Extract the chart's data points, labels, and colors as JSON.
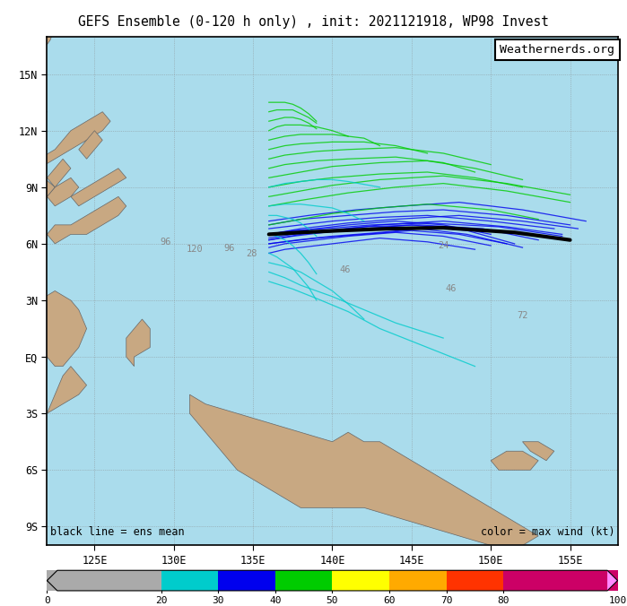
{
  "title": "GEFS Ensemble (0-120 h only) , init: 2021121918, WP98 Invest",
  "watermark": "Weathernerds.org",
  "legend_left": "black line = ens mean",
  "legend_right": "color = max wind (kt)",
  "map_extent": [
    122,
    158,
    -10,
    17
  ],
  "colorbar_ticks": [
    0,
    20,
    30,
    40,
    50,
    60,
    70,
    80,
    100
  ],
  "colorbar_colors": [
    "#aaaaaa",
    "#00cccc",
    "#0000ee",
    "#00cc00",
    "#ffff00",
    "#ffaa00",
    "#ff3300",
    "#cc0066",
    "#ff88ff"
  ],
  "background_color": "#aadcec",
  "land_color": "#c8a882",
  "border_color": "#666666",
  "grid_color": "#888888",
  "lat_labels": [
    "9S",
    "6S",
    "3S",
    "EQ",
    "3N",
    "6N",
    "9N",
    "12N",
    "15N"
  ],
  "lat_values": [
    -9,
    -6,
    -3,
    0,
    3,
    6,
    9,
    12,
    15
  ],
  "lon_labels": [
    "125E",
    "130E",
    "135E",
    "140E",
    "145E",
    "150E",
    "155E"
  ],
  "lon_values": [
    125,
    130,
    135,
    140,
    145,
    150,
    155
  ],
  "ensemble_tracks": [
    {
      "lons": [
        136.0,
        137.5,
        139.5,
        142.5,
        146.0,
        150.5,
        154.5
      ],
      "lats": [
        6.5,
        6.7,
        6.8,
        7.0,
        7.1,
        6.9,
        6.4
      ],
      "wind": 35
    },
    {
      "lons": [
        136.0,
        137.5,
        139.5,
        142.0,
        145.5,
        149.5,
        153.0
      ],
      "lats": [
        6.3,
        6.5,
        6.7,
        6.9,
        7.0,
        6.8,
        6.2
      ],
      "wind": 35
    },
    {
      "lons": [
        136.0,
        137.5,
        139.5,
        142.0,
        145.0,
        148.5,
        151.5
      ],
      "lats": [
        6.2,
        6.4,
        6.6,
        6.8,
        7.0,
        6.7,
        6.0
      ],
      "wind": 35
    },
    {
      "lons": [
        136.0,
        137.8,
        140.0,
        143.0,
        145.5,
        148.5,
        152.0
      ],
      "lats": [
        6.0,
        6.2,
        6.4,
        6.6,
        6.8,
        6.5,
        5.8
      ],
      "wind": 35
    },
    {
      "lons": [
        136.0,
        138.0,
        140.0,
        143.0,
        146.0,
        150.0,
        154.0
      ],
      "lats": [
        6.8,
        7.0,
        7.2,
        7.4,
        7.5,
        7.2,
        6.8
      ],
      "wind": 35
    },
    {
      "lons": [
        136.0,
        138.0,
        141.0,
        144.0,
        147.0,
        151.0,
        155.0
      ],
      "lats": [
        7.0,
        7.3,
        7.5,
        7.7,
        7.8,
        7.5,
        7.0
      ],
      "wind": 35
    },
    {
      "lons": [
        136.0,
        138.5,
        141.5,
        144.5,
        148.0,
        152.0,
        156.0
      ],
      "lats": [
        7.2,
        7.5,
        7.8,
        8.0,
        8.2,
        7.8,
        7.2
      ],
      "wind": 35
    },
    {
      "lons": [
        136.0,
        138.0,
        141.0,
        144.0,
        148.0,
        152.0,
        155.5
      ],
      "lats": [
        6.5,
        6.8,
        7.1,
        7.3,
        7.5,
        7.2,
        6.8
      ],
      "wind": 30
    },
    {
      "lons": [
        136.0,
        138.0,
        140.0,
        143.0,
        147.0,
        151.0,
        154.5
      ],
      "lats": [
        6.2,
        6.5,
        6.7,
        7.0,
        7.2,
        6.9,
        6.5
      ],
      "wind": 30
    },
    {
      "lons": [
        136.0,
        137.0,
        139.0,
        142.0,
        145.0,
        148.0,
        151.0
      ],
      "lats": [
        6.0,
        6.1,
        6.3,
        6.5,
        6.7,
        6.5,
        6.0
      ],
      "wind": 30
    },
    {
      "lons": [
        136.0,
        137.0,
        139.0,
        141.0,
        144.0,
        147.0,
        150.0
      ],
      "lats": [
        5.8,
        6.0,
        6.2,
        6.4,
        6.6,
        6.4,
        5.9
      ],
      "wind": 30
    },
    {
      "lons": [
        136.0,
        137.0,
        139.0,
        141.0,
        143.0,
        146.0,
        149.0
      ],
      "lats": [
        5.5,
        5.7,
        5.9,
        6.1,
        6.3,
        6.1,
        5.7
      ],
      "wind": 30
    },
    {
      "lons": [
        136.0,
        137.0,
        139.0,
        141.0,
        144.0,
        147.0,
        150.0
      ],
      "lats": [
        6.5,
        6.6,
        6.8,
        7.0,
        7.2,
        7.0,
        6.5
      ],
      "wind": 30
    },
    {
      "lons": [
        136.0,
        138.0,
        140.0,
        143.0,
        146.0,
        150.0,
        153.0
      ],
      "lats": [
        7.0,
        7.3,
        7.6,
        7.9,
        8.1,
        7.8,
        7.3
      ],
      "wind": 40
    },
    {
      "lons": [
        136.0,
        138.0,
        141.0,
        144.0,
        147.0,
        151.0,
        155.0
      ],
      "lats": [
        8.0,
        8.3,
        8.7,
        9.0,
        9.2,
        8.8,
        8.2
      ],
      "wind": 40
    },
    {
      "lons": [
        136.0,
        138.0,
        140.0,
        143.0,
        147.0,
        151.0,
        155.0
      ],
      "lats": [
        8.5,
        8.8,
        9.1,
        9.4,
        9.6,
        9.2,
        8.6
      ],
      "wind": 40
    },
    {
      "lons": [
        136.0,
        138.0,
        140.0,
        143.0,
        146.0,
        149.0,
        152.0
      ],
      "lats": [
        9.0,
        9.3,
        9.5,
        9.7,
        9.8,
        9.5,
        9.0
      ],
      "wind": 40
    },
    {
      "lons": [
        136.0,
        138.0,
        140.0,
        143.0,
        146.0,
        149.0,
        152.0
      ],
      "lats": [
        9.5,
        9.8,
        10.1,
        10.3,
        10.4,
        10.0,
        9.4
      ],
      "wind": 40
    },
    {
      "lons": [
        136.0,
        137.0,
        139.0,
        141.0,
        144.0,
        147.0,
        149.0
      ],
      "lats": [
        10.0,
        10.2,
        10.4,
        10.5,
        10.6,
        10.3,
        9.8
      ],
      "wind": 40
    },
    {
      "lons": [
        136.0,
        137.0,
        139.0,
        141.0,
        144.0,
        147.0,
        150.0
      ],
      "lats": [
        10.5,
        10.7,
        10.9,
        11.0,
        11.1,
        10.8,
        10.2
      ],
      "wind": 40
    },
    {
      "lons": [
        136.0,
        137.0,
        138.0,
        140.0,
        142.0,
        144.0,
        146.0
      ],
      "lats": [
        11.0,
        11.2,
        11.3,
        11.4,
        11.4,
        11.2,
        10.8
      ],
      "wind": 40
    },
    {
      "lons": [
        136.0,
        137.0,
        138.0,
        139.0,
        140.0,
        142.0,
        143.0
      ],
      "lats": [
        11.5,
        11.7,
        11.8,
        11.8,
        11.8,
        11.6,
        11.2
      ],
      "wind": 40
    },
    {
      "lons": [
        136.0,
        136.5,
        137.0,
        138.0,
        139.0,
        140.0,
        141.0
      ],
      "lats": [
        12.0,
        12.2,
        12.3,
        12.3,
        12.2,
        12.0,
        11.7
      ],
      "wind": 40
    },
    {
      "lons": [
        136.0,
        136.5,
        137.0,
        137.5,
        138.0,
        138.5,
        139.0
      ],
      "lats": [
        12.5,
        12.6,
        12.7,
        12.7,
        12.6,
        12.4,
        12.1
      ],
      "wind": 45
    },
    {
      "lons": [
        136.0,
        136.5,
        137.0,
        137.5,
        138.0,
        138.5,
        139.0
      ],
      "lats": [
        13.0,
        13.1,
        13.1,
        13.1,
        12.9,
        12.7,
        12.4
      ],
      "wind": 45
    },
    {
      "lons": [
        136.0,
        136.5,
        137.0,
        137.5,
        138.0,
        138.5,
        139.0
      ],
      "lats": [
        13.5,
        13.5,
        13.5,
        13.4,
        13.2,
        12.9,
        12.5
      ],
      "wind": 45
    },
    {
      "lons": [
        136.0,
        137.0,
        138.0,
        139.0,
        140.0,
        141.0,
        143.0
      ],
      "lats": [
        9.0,
        9.2,
        9.3,
        9.4,
        9.4,
        9.3,
        9.0
      ],
      "wind": 20
    },
    {
      "lons": [
        136.0,
        137.0,
        138.0,
        139.0,
        140.0,
        141.0,
        142.0
      ],
      "lats": [
        8.0,
        8.1,
        8.1,
        8.0,
        7.9,
        7.6,
        7.2
      ],
      "wind": 20
    },
    {
      "lons": [
        136.0,
        136.5,
        137.0,
        137.5,
        138.0,
        138.5,
        139.0
      ],
      "lats": [
        7.5,
        7.5,
        7.4,
        7.3,
        7.1,
        6.8,
        6.4
      ],
      "wind": 20
    },
    {
      "lons": [
        136.0,
        136.5,
        137.0,
        137.5,
        138.0,
        138.5,
        139.0
      ],
      "lats": [
        6.5,
        6.4,
        6.2,
        5.9,
        5.5,
        5.0,
        4.4
      ],
      "wind": 20
    },
    {
      "lons": [
        136.0,
        136.5,
        137.0,
        137.5,
        138.0,
        138.5,
        139.0
      ],
      "lats": [
        5.5,
        5.3,
        5.0,
        4.7,
        4.2,
        3.7,
        3.0
      ],
      "wind": 20
    },
    {
      "lons": [
        136.0,
        137.0,
        138.0,
        139.0,
        140.0,
        141.0,
        142.0
      ],
      "lats": [
        5.0,
        4.8,
        4.5,
        4.0,
        3.5,
        2.8,
        2.0
      ],
      "wind": 20
    },
    {
      "lons": [
        136.0,
        137.0,
        138.0,
        140.0,
        142.0,
        144.0,
        147.0
      ],
      "lats": [
        4.5,
        4.2,
        3.8,
        3.2,
        2.5,
        1.8,
        1.0
      ],
      "wind": 20
    },
    {
      "lons": [
        136.0,
        137.5,
        139.0,
        141.0,
        143.0,
        146.0,
        149.0
      ],
      "lats": [
        4.0,
        3.6,
        3.1,
        2.4,
        1.5,
        0.5,
        -0.5
      ],
      "wind": 20
    }
  ],
  "mean_track": {
    "lons": [
      136.0,
      138.0,
      140.5,
      143.5,
      147.0,
      151.5,
      155.0
    ],
    "lats": [
      6.5,
      6.6,
      6.7,
      6.8,
      6.85,
      6.6,
      6.2
    ]
  },
  "hour_labels": [
    {
      "lon": 129.5,
      "lat": 6.1,
      "text": "96"
    },
    {
      "lon": 131.3,
      "lat": 5.7,
      "text": "120"
    },
    {
      "lon": 133.5,
      "lat": 5.75,
      "text": "96"
    },
    {
      "lon": 134.9,
      "lat": 5.45,
      "text": "28"
    },
    {
      "lon": 140.8,
      "lat": 4.6,
      "text": "46"
    },
    {
      "lon": 147.5,
      "lat": 3.6,
      "text": "46"
    },
    {
      "lon": 152.0,
      "lat": 2.2,
      "text": "72"
    },
    {
      "lon": 147.0,
      "lat": 5.9,
      "text": "24"
    }
  ]
}
